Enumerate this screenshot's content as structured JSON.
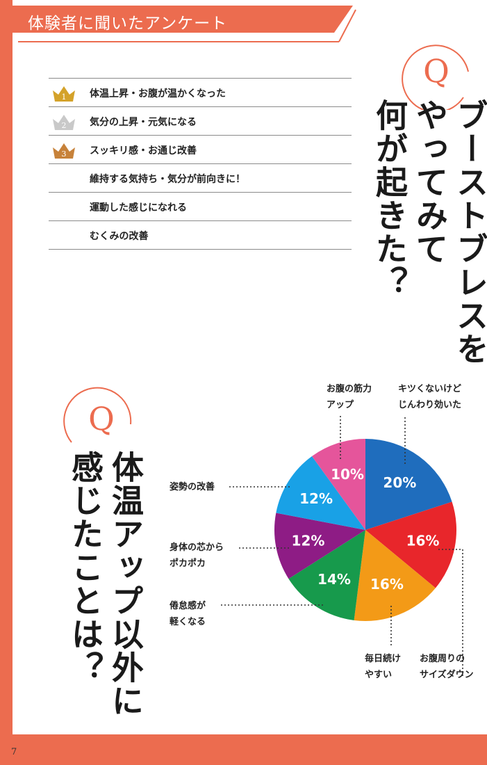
{
  "header": {
    "title": "体験者に聞いたアンケート"
  },
  "page_number": "7",
  "q1": {
    "q_letter": "Q",
    "question_lines": [
      "ブーストブレスを",
      "やってみて",
      "何が起きた？"
    ],
    "ranking": [
      {
        "rank": "1",
        "text": "体温上昇・お腹が温かくなった",
        "crown": "gold"
      },
      {
        "rank": "2",
        "text": "気分の上昇・元気になる",
        "crown": "silver"
      },
      {
        "rank": "3",
        "text": "スッキリ感・お通じ改善",
        "crown": "bronze"
      },
      {
        "rank": "",
        "text": "維持する気持ち・気分が前向きに！",
        "crown": ""
      },
      {
        "rank": "",
        "text": "運動した感じになれる",
        "crown": ""
      },
      {
        "rank": "",
        "text": "むくみの改善",
        "crown": ""
      }
    ]
  },
  "q2": {
    "q_letter": "Q",
    "question_lines": [
      "体温アップ以外に",
      "感じたことは？"
    ]
  },
  "colors": {
    "accent": "#ec6c4f",
    "gold": "#d4a22a",
    "silver": "#c9c9c9",
    "bronze": "#c7823a"
  },
  "chart_data": {
    "type": "pie",
    "slices": [
      {
        "label_lines": [
          "キツくないけど",
          "じんわり効いた"
        ],
        "value": 20,
        "value_label": "20%",
        "color": "#1f6dbd"
      },
      {
        "label_lines": [
          "お腹周りの",
          "サイズダウン"
        ],
        "value": 16,
        "value_label": "16%",
        "color": "#e8262b"
      },
      {
        "label_lines": [
          "毎日続け",
          "やすい"
        ],
        "value": 16,
        "value_label": "16%",
        "color": "#f39a17"
      },
      {
        "label_lines": [
          "倦怠感が",
          "軽くなる"
        ],
        "value": 14,
        "value_label": "14%",
        "color": "#179a4c"
      },
      {
        "label_lines": [
          "身体の芯から",
          "ポカポカ"
        ],
        "value": 12,
        "value_label": "12%",
        "color": "#8e1c85"
      },
      {
        "label_lines": [
          "姿勢の改善"
        ],
        "value": 12,
        "value_label": "12%",
        "color": "#19a1e6"
      },
      {
        "label_lines": [
          "お腹の筋力",
          "アップ"
        ],
        "value": 10,
        "value_label": "10%",
        "color": "#e5559b"
      }
    ]
  }
}
